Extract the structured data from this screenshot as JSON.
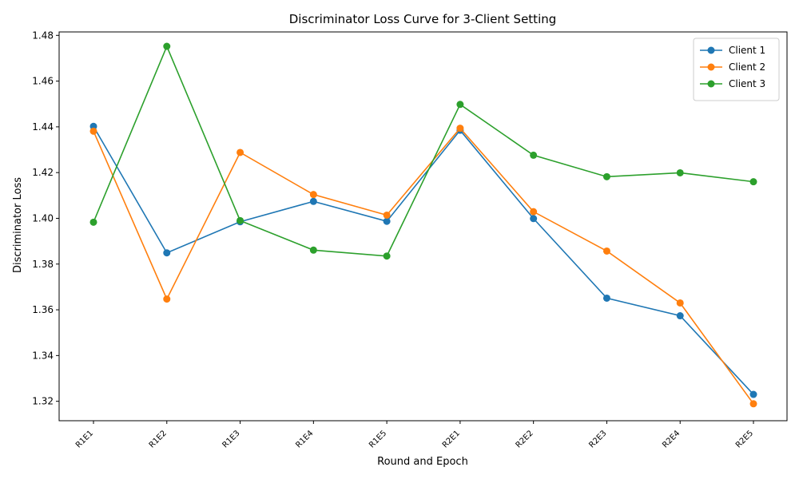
{
  "chart_data": {
    "type": "line",
    "title": "Discriminator Loss Curve for 3-Client Setting",
    "xlabel": "Round and Epoch",
    "ylabel": "Discriminator Loss",
    "categories": [
      "R1E1",
      "R1E2",
      "R1E3",
      "R1E4",
      "R1E5",
      "R2E1",
      "R2E2",
      "R2E3",
      "R2E4",
      "R2E5"
    ],
    "ylim": [
      1.3115,
      1.4815
    ],
    "yticks": [
      1.32,
      1.34,
      1.36,
      1.38,
      1.4,
      1.42,
      1.44,
      1.46,
      1.48
    ],
    "grid": false,
    "legend_position": "top-right",
    "series": [
      {
        "name": "Client 1",
        "color": "#1f77b4",
        "marker": "circle",
        "values": [
          1.4402,
          1.3849,
          1.3985,
          1.4074,
          1.3987,
          1.4385,
          1.3999,
          1.3651,
          1.3574,
          1.323
        ]
      },
      {
        "name": "Client 2",
        "color": "#ff7f0e",
        "marker": "circle",
        "values": [
          1.4381,
          1.3647,
          1.4288,
          1.4104,
          1.4014,
          1.4394,
          1.4029,
          1.3857,
          1.363,
          1.3189
        ]
      },
      {
        "name": "Client 3",
        "color": "#2ca02c",
        "marker": "circle",
        "values": [
          1.3983,
          1.4752,
          1.399,
          1.3861,
          1.3835,
          1.4498,
          1.4276,
          1.4182,
          1.4199,
          1.416
        ]
      }
    ]
  }
}
